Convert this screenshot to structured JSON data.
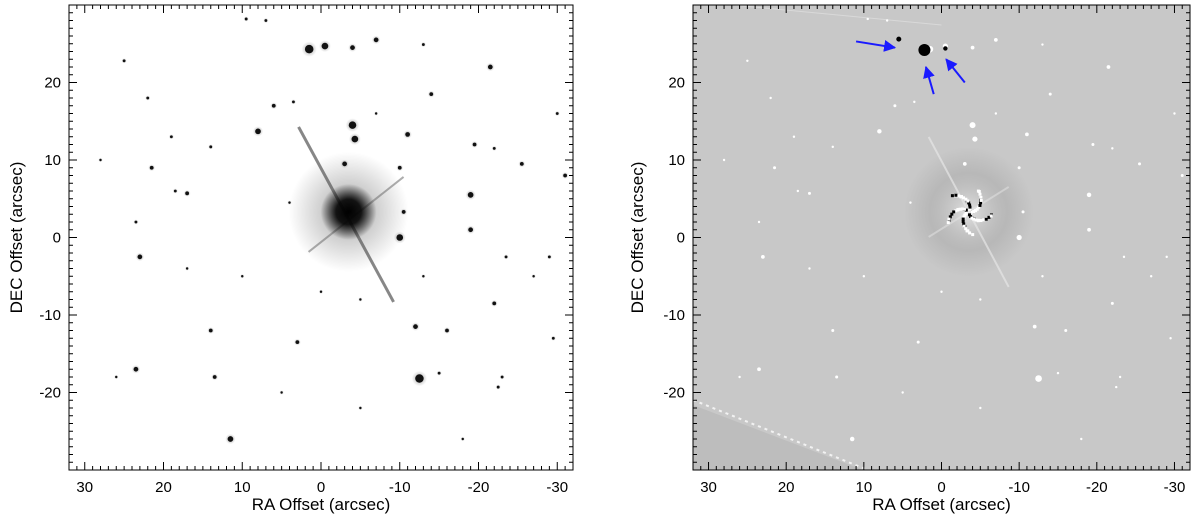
{
  "figure": {
    "panels": [
      {
        "id": "left",
        "variant": "raw-image",
        "xlabel": "RA Offset (arcsec)",
        "ylabel": "DEC Offset (arcsec)",
        "xrange": [
          32,
          -32
        ],
        "yrange": [
          -30,
          30
        ],
        "xticks": [
          30,
          20,
          10,
          0,
          -10,
          -20,
          -30
        ],
        "yticks": [
          20,
          10,
          0,
          -10,
          -20
        ],
        "xtick_labels": [
          "30",
          "20",
          "10",
          "0",
          "-10",
          "-20",
          "-30"
        ],
        "ytick_labels": [
          "20",
          "10",
          "0",
          "-10",
          "-20"
        ],
        "background": "#ffffff",
        "star_color": "#111111"
      },
      {
        "id": "right",
        "variant": "psf-subtracted",
        "xlabel": "RA Offset (arcsec)",
        "ylabel": "DEC Offset (arcsec)",
        "xrange": [
          32,
          -32
        ],
        "yrange": [
          -30,
          30
        ],
        "xticks": [
          30,
          20,
          10,
          0,
          -10,
          -20,
          -30
        ],
        "yticks": [
          20,
          10,
          0,
          -10,
          -20
        ],
        "xtick_labels": [
          "30",
          "20",
          "10",
          "0",
          "-10",
          "-20",
          "-30"
        ],
        "ytick_labels": [
          "20",
          "10",
          "0",
          "-10",
          "-20"
        ],
        "background": "#c8c8c8",
        "star_color": "#ffffff",
        "arrow_color": "#1a1aff"
      }
    ],
    "central_star": {
      "ra": -3.5,
      "dec": 3.3
    },
    "stars": [
      {
        "ra": 1.5,
        "dec": 24.3,
        "r": 0.9
      },
      {
        "ra": -0.5,
        "dec": 24.7,
        "r": 0.7
      },
      {
        "ra": -4,
        "dec": 24.5,
        "r": 0.5
      },
      {
        "ra": -7,
        "dec": 25.5,
        "r": 0.5
      },
      {
        "ra": -13,
        "dec": 24.9,
        "r": 0.3
      },
      {
        "ra": -21.5,
        "dec": 22,
        "r": 0.5
      },
      {
        "ra": 25,
        "dec": 22.8,
        "r": 0.3
      },
      {
        "ra": 7,
        "dec": 28,
        "r": 0.3
      },
      {
        "ra": 9.5,
        "dec": 28.2,
        "r": 0.3
      },
      {
        "ra": -14,
        "dec": 18.5,
        "r": 0.4
      },
      {
        "ra": 22,
        "dec": 18,
        "r": 0.3
      },
      {
        "ra": 6,
        "dec": 17,
        "r": 0.4
      },
      {
        "ra": 3.5,
        "dec": 17.5,
        "r": 0.3
      },
      {
        "ra": -30,
        "dec": 16,
        "r": 0.3
      },
      {
        "ra": -4,
        "dec": 14.5,
        "r": 0.8
      },
      {
        "ra": -4.3,
        "dec": 12.7,
        "r": 0.7
      },
      {
        "ra": 8,
        "dec": 13.7,
        "r": 0.6
      },
      {
        "ra": -11,
        "dec": 13.3,
        "r": 0.5
      },
      {
        "ra": -19.5,
        "dec": 12,
        "r": 0.4
      },
      {
        "ra": -22,
        "dec": 11.5,
        "r": 0.3
      },
      {
        "ra": 19,
        "dec": 13,
        "r": 0.3
      },
      {
        "ra": 14,
        "dec": 11.7,
        "r": 0.3
      },
      {
        "ra": -3,
        "dec": 9.5,
        "r": 0.5
      },
      {
        "ra": -10,
        "dec": 9,
        "r": 0.4
      },
      {
        "ra": 21.5,
        "dec": 9,
        "r": 0.4
      },
      {
        "ra": -25.5,
        "dec": 9.5,
        "r": 0.4
      },
      {
        "ra": -31,
        "dec": 8,
        "r": 0.4
      },
      {
        "ra": 17,
        "dec": 5.7,
        "r": 0.4
      },
      {
        "ra": 18.5,
        "dec": 6,
        "r": 0.3
      },
      {
        "ra": -19,
        "dec": 5.5,
        "r": 0.6
      },
      {
        "ra": -10.5,
        "dec": 3.3,
        "r": 0.4
      },
      {
        "ra": -19,
        "dec": 1,
        "r": 0.5
      },
      {
        "ra": -10,
        "dec": 0,
        "r": 0.7
      },
      {
        "ra": 23.5,
        "dec": 2,
        "r": 0.3
      },
      {
        "ra": 23,
        "dec": -2.5,
        "r": 0.5
      },
      {
        "ra": -29,
        "dec": -2.5,
        "r": 0.3
      },
      {
        "ra": -23.5,
        "dec": -2.5,
        "r": 0.3
      },
      {
        "ra": -22,
        "dec": -8.5,
        "r": 0.4
      },
      {
        "ra": -12,
        "dec": -11.5,
        "r": 0.5
      },
      {
        "ra": -16,
        "dec": -12,
        "r": 0.4
      },
      {
        "ra": 14,
        "dec": -12,
        "r": 0.4
      },
      {
        "ra": 3,
        "dec": -13.5,
        "r": 0.4
      },
      {
        "ra": -29.5,
        "dec": -13,
        "r": 0.3
      },
      {
        "ra": -15,
        "dec": -17.5,
        "r": 0.3
      },
      {
        "ra": 23.5,
        "dec": -17,
        "r": 0.5
      },
      {
        "ra": 13.5,
        "dec": -18,
        "r": 0.4
      },
      {
        "ra": -12.5,
        "dec": -18.2,
        "r": 0.9
      },
      {
        "ra": -23,
        "dec": -18,
        "r": 0.3
      },
      {
        "ra": -22.5,
        "dec": -19.3,
        "r": 0.3
      },
      {
        "ra": 11.5,
        "dec": -26,
        "r": 0.6
      },
      {
        "ra": 26,
        "dec": -18,
        "r": 0.2
      },
      {
        "ra": 4,
        "dec": 4.5,
        "r": 0.2
      },
      {
        "ra": -7,
        "dec": 16,
        "r": 0.2
      },
      {
        "ra": 0,
        "dec": -7,
        "r": 0.2
      },
      {
        "ra": -5,
        "dec": -8,
        "r": 0.2
      },
      {
        "ra": -13,
        "dec": -5,
        "r": 0.2
      },
      {
        "ra": -27,
        "dec": -5,
        "r": 0.2
      },
      {
        "ra": 10,
        "dec": -5,
        "r": 0.2
      },
      {
        "ra": 17,
        "dec": -4,
        "r": 0.2
      },
      {
        "ra": 5,
        "dec": -20,
        "r": 0.2
      },
      {
        "ra": -5,
        "dec": -22,
        "r": 0.2
      },
      {
        "ra": -18,
        "dec": -26,
        "r": 0.2
      },
      {
        "ra": 28,
        "dec": 10,
        "r": 0.2
      }
    ],
    "arrows": [
      {
        "from": [
          11,
          25.3
        ],
        "to": [
          6,
          24.5
        ]
      },
      {
        "from": [
          1,
          18.5
        ],
        "to": [
          2,
          22
        ]
      },
      {
        "from": [
          -3,
          20
        ],
        "to": [
          -0.6,
          23
        ]
      },
      {
        "from": [
          -3,
          20.5
        ],
        "to": [
          -3.3,
          20.7
        ]
      }
    ]
  }
}
